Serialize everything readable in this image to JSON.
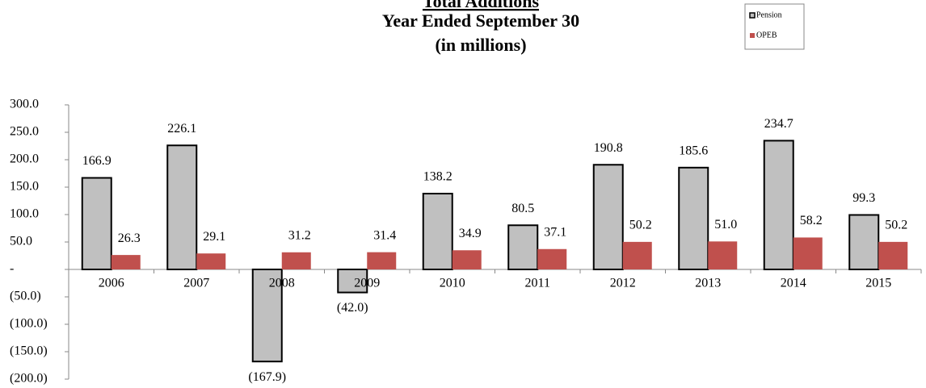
{
  "chart_data": {
    "type": "bar",
    "title": "Total Additions",
    "subtitle": [
      "Year Ended September 30",
      "(in millions)"
    ],
    "categories": [
      "2006",
      "2007",
      "2008",
      "2009",
      "2010",
      "2011",
      "2012",
      "2013",
      "2014",
      "2015"
    ],
    "series": [
      {
        "name": "Pension",
        "color": "#c0c0c0",
        "values": [
          166.9,
          226.1,
          -167.9,
          -42.0,
          138.2,
          80.5,
          190.8,
          185.6,
          234.7,
          99.3
        ],
        "value_labels": [
          "166.9",
          "226.1",
          "(167.9)",
          "(42.0)",
          "138.2",
          "80.5",
          "190.8",
          "185.6",
          "234.7",
          "99.3"
        ]
      },
      {
        "name": "OPEB",
        "color": "#c0504d",
        "values": [
          26.3,
          29.1,
          31.2,
          31.4,
          34.9,
          37.1,
          50.2,
          51.0,
          58.2,
          50.2
        ],
        "value_labels": [
          "26.3",
          "29.1",
          "31.2",
          "31.4",
          "34.9",
          "37.1",
          "50.2",
          "51.0",
          "58.2",
          "50.2"
        ]
      }
    ],
    "ylim": [
      -200,
      300
    ],
    "yticks": [
      {
        "value": 300,
        "label": "300.0"
      },
      {
        "value": 250,
        "label": "250.0"
      },
      {
        "value": 200,
        "label": "200.0"
      },
      {
        "value": 150,
        "label": "150.0"
      },
      {
        "value": 100,
        "label": "100.0"
      },
      {
        "value": 50,
        "label": "50.0"
      },
      {
        "value": 0,
        "label": "-"
      },
      {
        "value": -50,
        "label": "(50.0)"
      },
      {
        "value": -100,
        "label": "(100.0)"
      },
      {
        "value": -150,
        "label": "(150.0)"
      },
      {
        "value": -200,
        "label": "(200.0)"
      }
    ],
    "legend": "top-right"
  }
}
